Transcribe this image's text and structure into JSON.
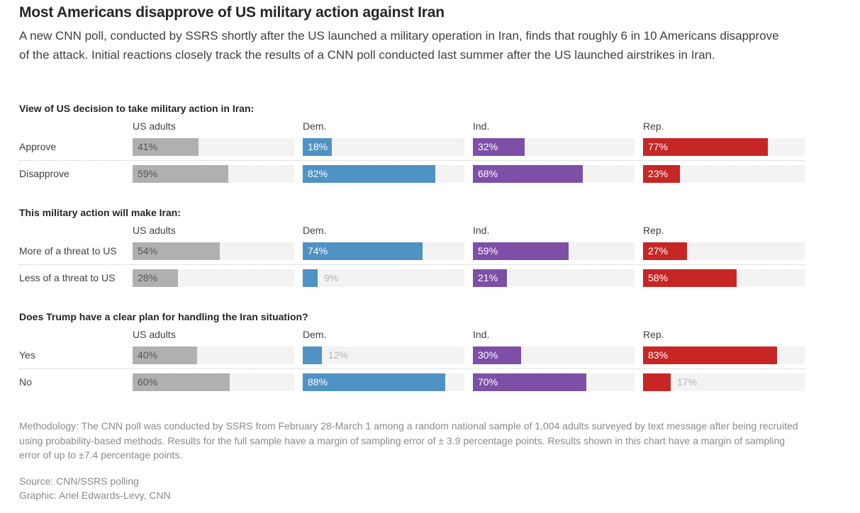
{
  "header": {
    "title": "Most Americans disapprove of US military action against Iran",
    "subtitle": "A new CNN poll, conducted by SSRS shortly after the US launched a military operation in Iran, finds that roughly 6 in 10 Americans disapprove of the attack. Initial reactions closely track the results of a CNN poll conducted last summer after the US launched airstrikes in Iran."
  },
  "colors": {
    "US adults": "#b0b0b0",
    "Dem.": "#4f92c4",
    "Ind.": "#7d4fa6",
    "Rep.": "#c62624",
    "track": "#f3f3f3",
    "label_on_gray": "#555555",
    "label_on_color": "#ffffff",
    "label_outside": "#b5b5b5"
  },
  "chart_data": {
    "type": "bar",
    "orientation": "horizontal",
    "groups": [
      "US adults",
      "Dem.",
      "Ind.",
      "Rep."
    ],
    "xlim": [
      0,
      100
    ],
    "unit": "%",
    "panels": [
      {
        "title": "View of US decision to take military action in Iran:",
        "categories": [
          "Approve",
          "Disapprove"
        ],
        "series": [
          {
            "name": "US adults",
            "values": [
              41,
              59
            ]
          },
          {
            "name": "Dem.",
            "values": [
              18,
              82
            ]
          },
          {
            "name": "Ind.",
            "values": [
              32,
              68
            ]
          },
          {
            "name": "Rep.",
            "values": [
              77,
              23
            ]
          }
        ]
      },
      {
        "title": "This military action will make Iran:",
        "categories": [
          "More of a threat to US",
          "Less of a threat to US"
        ],
        "series": [
          {
            "name": "US adults",
            "values": [
              54,
              28
            ]
          },
          {
            "name": "Dem.",
            "values": [
              74,
              9
            ]
          },
          {
            "name": "Ind.",
            "values": [
              59,
              21
            ]
          },
          {
            "name": "Rep.",
            "values": [
              27,
              58
            ]
          }
        ]
      },
      {
        "title": "Does Trump have a clear plan for handling the Iran situation?",
        "categories": [
          "Yes",
          "No"
        ],
        "series": [
          {
            "name": "US adults",
            "values": [
              40,
              60
            ]
          },
          {
            "name": "Dem.",
            "values": [
              12,
              88
            ]
          },
          {
            "name": "Ind.",
            "values": [
              30,
              70
            ]
          },
          {
            "name": "Rep.",
            "values": [
              83,
              17
            ]
          }
        ]
      }
    ]
  },
  "footer": {
    "methodology": "Methodology: The CNN poll was conducted by SSRS from February 28-March 1 among a random national sample of 1,004 adults surveyed by text message after being recruited using probability-based methods. Results for the full sample have a margin of sampling error of ± 3.9 percentage points. Results shown in this chart have a margin of sampling error of up to ±7.4 percentage points.",
    "source": "Source: CNN/SSRS polling",
    "graphic": "Graphic: Ariel Edwards-Levy, CNN"
  }
}
